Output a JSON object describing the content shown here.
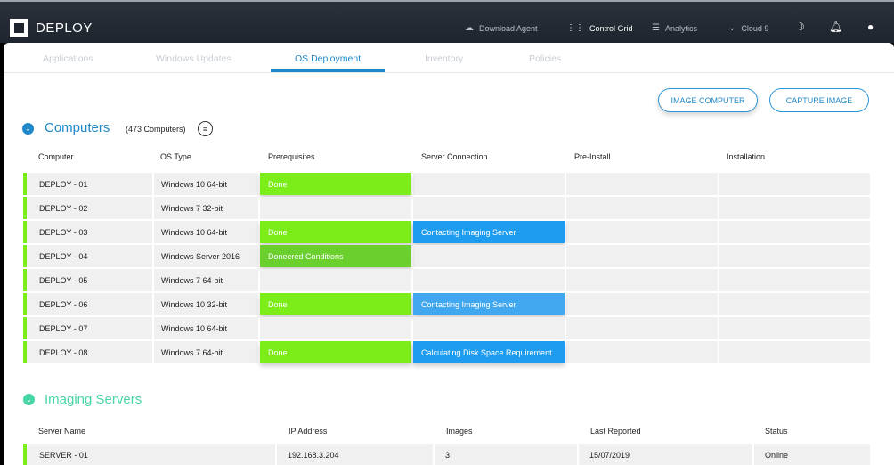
{
  "app": {
    "brand": "DEPLOY"
  },
  "topnav": {
    "download_agent": "Download Agent",
    "control_grid": "Control Grid",
    "analytics": "Analytics",
    "cloud": "Cloud 9"
  },
  "tabs": [
    "Applications",
    "Windows Updates",
    "OS Deployment",
    "Inventory",
    "Policies"
  ],
  "active_tab": "OS Deployment",
  "actions": {
    "image_computer": "IMAGE COMPUTER",
    "capture_image": "CAPTURE IMAGE"
  },
  "computers": {
    "title": "Computers",
    "count": "(473 Computers)",
    "headers": [
      "Computer",
      "OS Type",
      "Prerequisites",
      "Server Connection",
      "Pre-Install",
      "Installation"
    ],
    "rows": [
      {
        "name": "DEPLOY - 01",
        "os": "Windows 10 64-bit",
        "prereq": "Done",
        "conn": ""
      },
      {
        "name": "DEPLOY - 02",
        "os": "Windows 7 32-bit",
        "prereq": "",
        "conn": ""
      },
      {
        "name": "DEPLOY - 03",
        "os": "Windows 10 64-bit",
        "prereq": "Done",
        "conn": "Contacting Imaging Server"
      },
      {
        "name": "DEPLOY - 04",
        "os": "Windows Server 2016",
        "prereq": "Doneered Conditions",
        "conn": ""
      },
      {
        "name": "DEPLOY - 05",
        "os": "Windows 7 64-bit",
        "prereq": "",
        "conn": ""
      },
      {
        "name": "DEPLOY - 06",
        "os": "Windows 10 32-bit",
        "prereq": "Done",
        "conn": "Contacting Imaging Server"
      },
      {
        "name": "DEPLOY - 07",
        "os": "Windows 10 64-bit",
        "prereq": "",
        "conn": ""
      },
      {
        "name": "DEPLOY - 08",
        "os": "Windows 7 64-bit",
        "prereq": "Done",
        "conn": "Calculating Disk Space Requirement"
      }
    ]
  },
  "imaging_servers": {
    "title": "Imaging Servers",
    "headers": [
      "Server Name",
      "IP Address",
      "Images",
      "Last Reported",
      "Status"
    ],
    "rows": [
      {
        "name": "SERVER - 01",
        "ip": "192.168.3.204",
        "images": "3",
        "reported": "15/07/2019",
        "status": "Online"
      }
    ]
  },
  "colors": {
    "accent_blue": "#1f88c9",
    "done_green": "#7ded1a",
    "connect_blue": "#1e9cf0",
    "section_green": "#48d6a4"
  }
}
